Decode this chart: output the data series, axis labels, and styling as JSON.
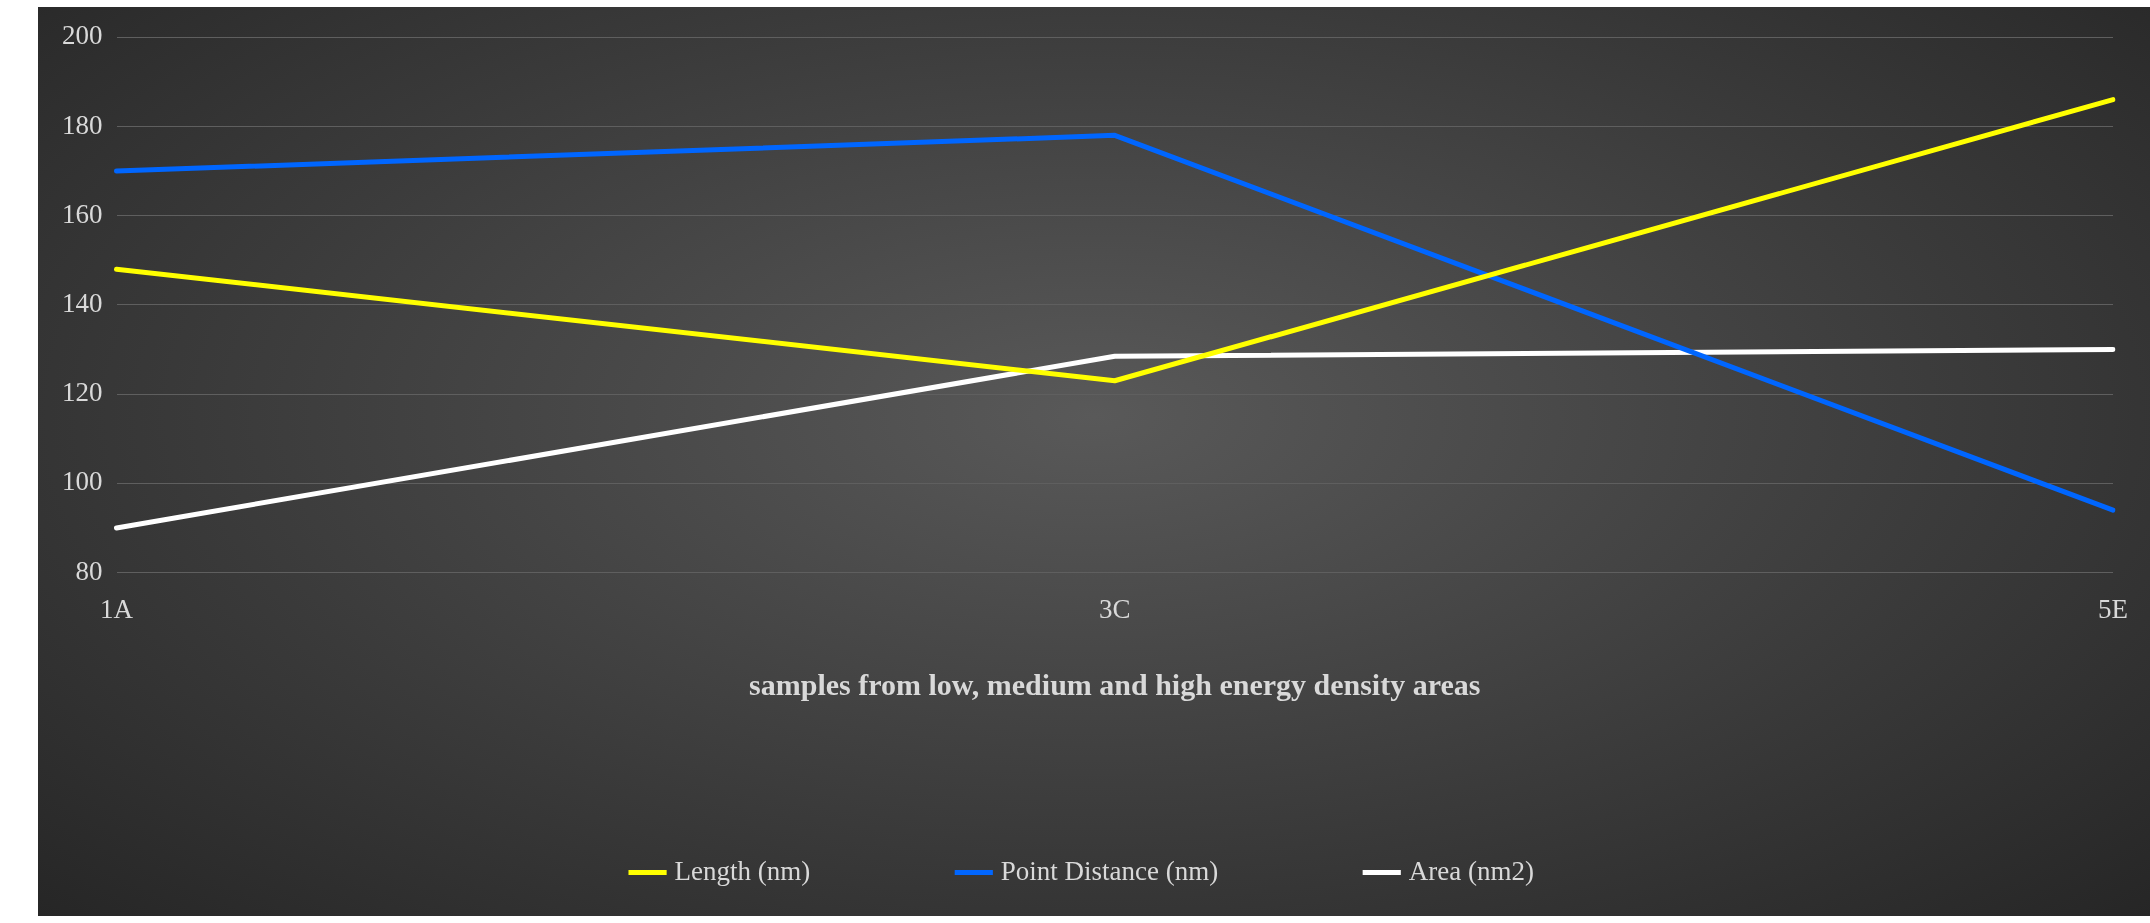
{
  "chart_data": {
    "type": "line",
    "xlabel": "samples from low, medium and high energy density areas",
    "categories": [
      "1A",
      "3C",
      "5E"
    ],
    "series": [
      {
        "name": "Length (nm)",
        "color": "#ffff00",
        "values": [
          148,
          123,
          186
        ]
      },
      {
        "name": "Point Distance (nm)",
        "color": "#0066ff",
        "values": [
          170,
          178,
          94
        ]
      },
      {
        "name": "Area (nm2)",
        "color": "#ffffff",
        "values": [
          90,
          128.5,
          130
        ]
      }
    ],
    "ylim": [
      80,
      200
    ],
    "yticks": [
      80,
      100,
      120,
      140,
      160,
      180,
      200
    ],
    "grid": "y",
    "legend": "bottom",
    "marker": "none",
    "line_style": "solid"
  }
}
